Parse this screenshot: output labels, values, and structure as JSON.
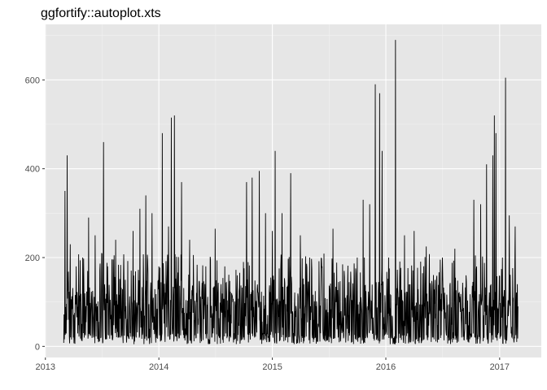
{
  "chart_data": {
    "type": "line",
    "title": "ggfortify::autoplot.xts",
    "xlabel": "",
    "ylabel": "",
    "x_range": [
      "2012-12-30",
      "2017-05-15"
    ],
    "y_range": [
      -25,
      725
    ],
    "x_ticks": [
      {
        "date": "2013-01-01",
        "label": "2013"
      },
      {
        "date": "2014-01-01",
        "label": "2014"
      },
      {
        "date": "2015-01-01",
        "label": "2015"
      },
      {
        "date": "2016-01-01",
        "label": "2016"
      },
      {
        "date": "2017-01-01",
        "label": "2017"
      }
    ],
    "y_ticks": [
      {
        "value": 0,
        "label": "0"
      },
      {
        "value": 200,
        "label": "200"
      },
      {
        "value": 400,
        "label": "400"
      },
      {
        "value": 600,
        "label": "600"
      }
    ],
    "grid": true,
    "panel_background": "#e6e6e6",
    "grid_color": "#ffffff",
    "line_color": "#000000",
    "series": [
      {
        "points": [
          [
            "2013-03-01",
            8
          ],
          [
            "2013-03-05",
            350
          ],
          [
            "2013-03-09",
            30
          ],
          [
            "2013-03-12",
            430
          ],
          [
            "2013-03-17",
            60
          ],
          [
            "2013-03-22",
            230
          ],
          [
            "2013-04-01",
            20
          ],
          [
            "2013-04-10",
            180
          ],
          [
            "2013-04-20",
            40
          ],
          [
            "2013-05-01",
            200
          ],
          [
            "2013-05-10",
            25
          ],
          [
            "2013-05-20",
            290
          ],
          [
            "2013-06-01",
            30
          ],
          [
            "2013-06-10",
            250
          ],
          [
            "2013-06-20",
            20
          ],
          [
            "2013-07-01",
            210
          ],
          [
            "2013-07-07",
            460
          ],
          [
            "2013-07-12",
            40
          ],
          [
            "2013-07-20",
            180
          ],
          [
            "2013-08-01",
            25
          ],
          [
            "2013-08-15",
            240
          ],
          [
            "2013-09-01",
            20
          ],
          [
            "2013-09-15",
            150
          ],
          [
            "2013-10-01",
            30
          ],
          [
            "2013-10-10",
            260
          ],
          [
            "2013-10-20",
            20
          ],
          [
            "2013-11-01",
            310
          ],
          [
            "2013-11-10",
            30
          ],
          [
            "2013-11-20",
            340
          ],
          [
            "2013-12-01",
            20
          ],
          [
            "2013-12-10",
            300
          ],
          [
            "2013-12-20",
            40
          ],
          [
            "2014-01-01",
            180
          ],
          [
            "2014-01-12",
            480
          ],
          [
            "2014-01-20",
            30
          ],
          [
            "2014-02-01",
            270
          ],
          [
            "2014-02-10",
            515
          ],
          [
            "2014-02-15",
            40
          ],
          [
            "2014-02-20",
            520
          ],
          [
            "2014-03-01",
            30
          ],
          [
            "2014-03-15",
            370
          ],
          [
            "2014-03-25",
            30
          ],
          [
            "2014-04-10",
            240
          ],
          [
            "2014-05-01",
            20
          ],
          [
            "2014-06-01",
            180
          ],
          [
            "2014-06-20",
            20
          ],
          [
            "2014-07-01",
            265
          ],
          [
            "2014-07-15",
            20
          ],
          [
            "2014-08-01",
            180
          ],
          [
            "2014-08-20",
            20
          ],
          [
            "2014-09-10",
            160
          ],
          [
            "2014-10-01",
            20
          ],
          [
            "2014-10-10",
            370
          ],
          [
            "2014-10-20",
            30
          ],
          [
            "2014-10-28",
            380
          ],
          [
            "2014-11-05",
            20
          ],
          [
            "2014-11-20",
            395
          ],
          [
            "2014-12-01",
            30
          ],
          [
            "2014-12-10",
            300
          ],
          [
            "2014-12-20",
            20
          ],
          [
            "2015-01-01",
            260
          ],
          [
            "2015-01-10",
            440
          ],
          [
            "2015-01-20",
            30
          ],
          [
            "2015-02-01",
            300
          ],
          [
            "2015-02-15",
            20
          ],
          [
            "2015-03-01",
            390
          ],
          [
            "2015-03-10",
            30
          ],
          [
            "2015-04-01",
            250
          ],
          [
            "2015-04-15",
            20
          ],
          [
            "2015-05-01",
            200
          ],
          [
            "2015-05-20",
            20
          ],
          [
            "2015-06-10",
            180
          ],
          [
            "2015-07-01",
            20
          ],
          [
            "2015-07-15",
            265
          ],
          [
            "2015-08-01",
            20
          ],
          [
            "2015-08-20",
            170
          ],
          [
            "2015-09-15",
            10
          ],
          [
            "2015-10-01",
            200
          ],
          [
            "2015-10-10",
            20
          ],
          [
            "2015-10-20",
            330
          ],
          [
            "2015-11-01",
            30
          ],
          [
            "2015-11-10",
            320
          ],
          [
            "2015-11-20",
            30
          ],
          [
            "2015-11-28",
            590
          ],
          [
            "2015-12-05",
            20
          ],
          [
            "2015-12-12",
            570
          ],
          [
            "2015-12-20",
            440
          ],
          [
            "2016-01-01",
            30
          ],
          [
            "2016-01-10",
            200
          ],
          [
            "2016-01-20",
            20
          ],
          [
            "2016-02-01",
            690
          ],
          [
            "2016-02-10",
            40
          ],
          [
            "2016-03-01",
            250
          ],
          [
            "2016-03-15",
            20
          ],
          [
            "2016-04-01",
            260
          ],
          [
            "2016-04-20",
            20
          ],
          [
            "2016-05-10",
            225
          ],
          [
            "2016-06-01",
            20
          ],
          [
            "2016-07-01",
            200
          ],
          [
            "2016-07-20",
            20
          ],
          [
            "2016-08-10",
            220
          ],
          [
            "2016-09-01",
            20
          ],
          [
            "2016-09-15",
            160
          ],
          [
            "2016-10-01",
            20
          ],
          [
            "2016-10-10",
            330
          ],
          [
            "2016-10-20",
            30
          ],
          [
            "2016-11-01",
            320
          ],
          [
            "2016-11-10",
            30
          ],
          [
            "2016-11-20",
            410
          ],
          [
            "2016-12-01",
            30
          ],
          [
            "2016-12-10",
            430
          ],
          [
            "2016-12-15",
            520
          ],
          [
            "2016-12-20",
            480
          ],
          [
            "2016-12-28",
            30
          ],
          [
            "2017-01-10",
            200
          ],
          [
            "2017-01-20",
            605
          ],
          [
            "2017-01-25",
            40
          ],
          [
            "2017-02-01",
            295
          ],
          [
            "2017-02-10",
            20
          ],
          [
            "2017-02-20",
            270
          ],
          [
            "2017-02-25",
            10
          ],
          [
            "2017-03-01",
            90
          ]
        ]
      }
    ]
  }
}
